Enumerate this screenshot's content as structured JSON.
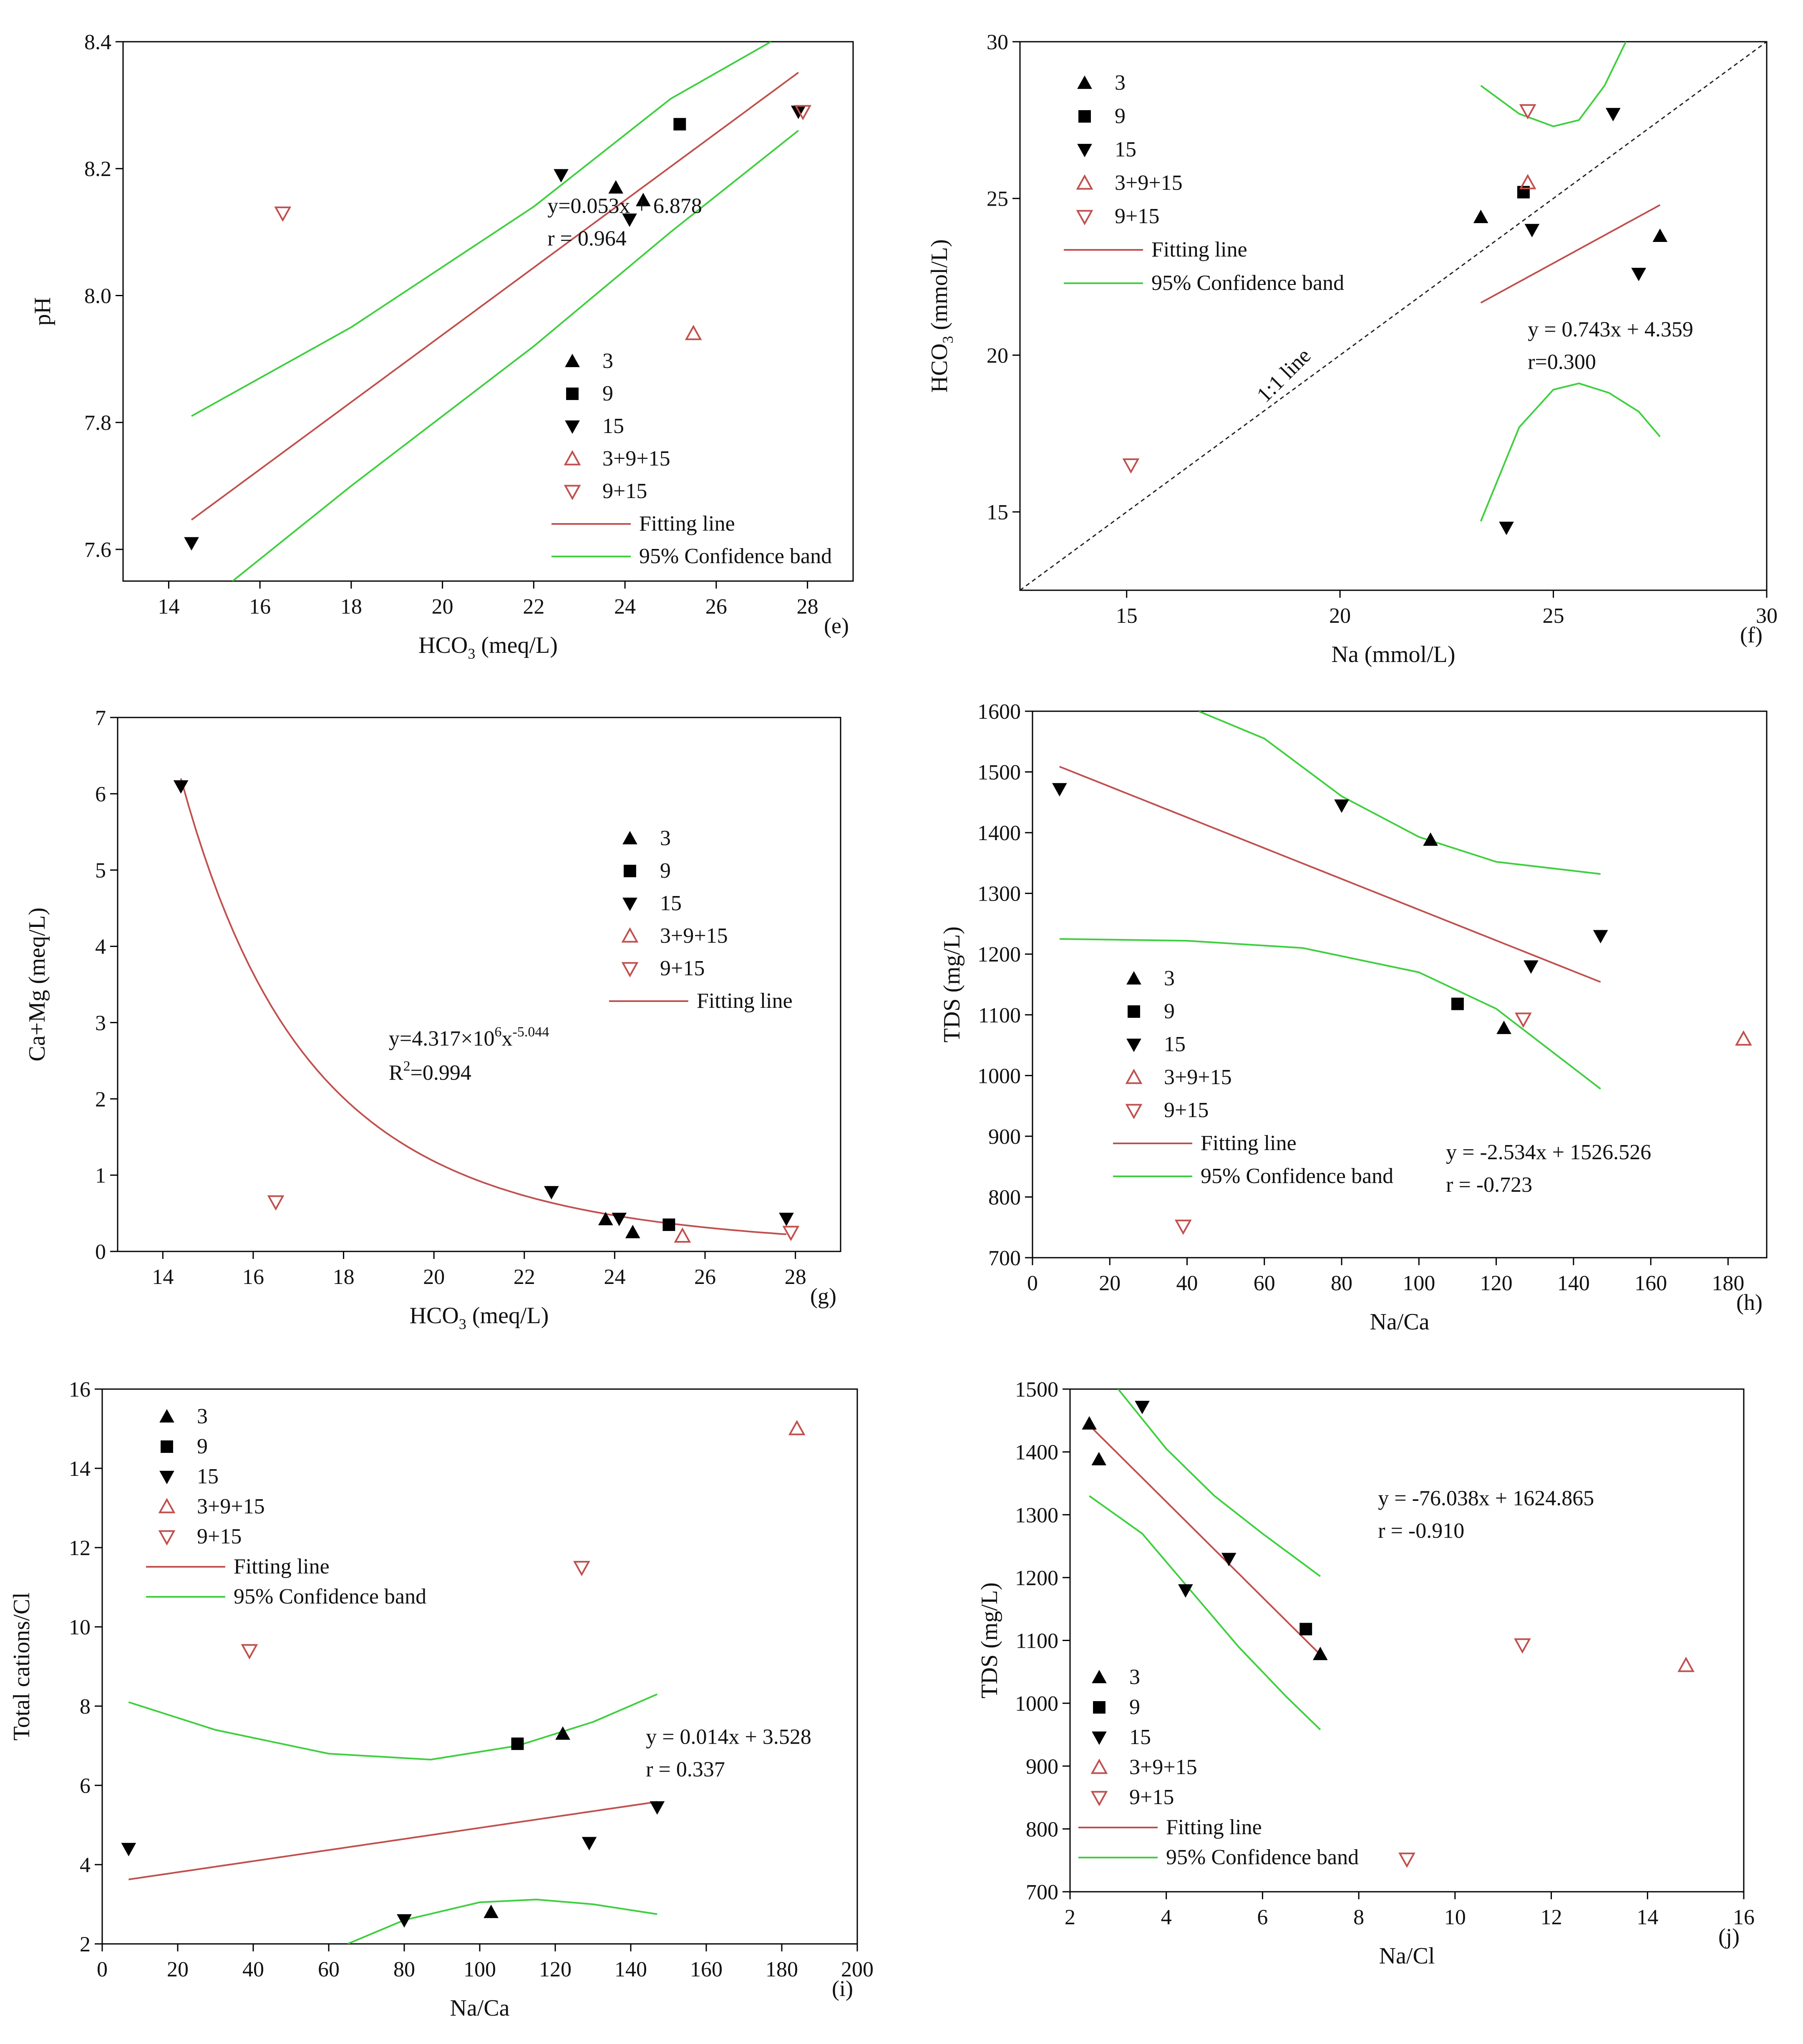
{
  "colors": {
    "axis": "#000000",
    "filled": "#000000",
    "open": "#c0504d",
    "fit": "#c0504d",
    "band": "#3ecf3e",
    "ref": "#222222"
  },
  "chart_data": [
    {
      "id": "e",
      "type": "scatter",
      "panel_label": "(e)",
      "xlabel": "HCO",
      "xlabel_sub": "3",
      "xlabel_tail": " (meq/L)",
      "ylabel": "pH",
      "xlim": [
        13,
        29
      ],
      "ylim": [
        7.55,
        8.4
      ],
      "xticks": [
        14,
        16,
        18,
        20,
        22,
        24,
        26,
        28
      ],
      "yticks": [
        7.6,
        7.8,
        8.0,
        8.2,
        8.4
      ],
      "ytick_labels": [
        "7.6",
        "7.8",
        "8.0",
        "8.2",
        "8.4"
      ],
      "series": [
        {
          "name": "3",
          "marker": "tri-up-filled",
          "points": [
            [
              23.8,
              8.17
            ],
            [
              24.4,
              8.15
            ]
          ]
        },
        {
          "name": "9",
          "marker": "square-filled",
          "points": [
            [
              25.2,
              8.27
            ]
          ]
        },
        {
          "name": "15",
          "marker": "tri-down-filled",
          "points": [
            [
              14.5,
              7.61
            ],
            [
              22.6,
              8.19
            ],
            [
              24.1,
              8.12
            ],
            [
              27.8,
              8.29
            ]
          ]
        },
        {
          "name": "3+9+15",
          "marker": "tri-up-open",
          "points": [
            [
              25.5,
              7.94
            ]
          ]
        },
        {
          "name": "9+15",
          "marker": "tri-down-open",
          "points": [
            [
              16.5,
              8.13
            ],
            [
              27.9,
              8.29
            ]
          ]
        }
      ],
      "fit": {
        "name": "Fitting line",
        "kind": "linear",
        "a": 0.053,
        "b": 6.878,
        "x_range": [
          14.5,
          27.8
        ]
      },
      "band": {
        "name": "95% Confidence band",
        "upper": [
          [
            14.5,
            7.81
          ],
          [
            18,
            7.95
          ],
          [
            22,
            8.14
          ],
          [
            25,
            8.31
          ],
          [
            27.2,
            8.4
          ]
        ],
        "lower": [
          [
            15.4,
            7.55
          ],
          [
            18,
            7.7
          ],
          [
            22,
            7.92
          ],
          [
            25,
            8.1
          ],
          [
            27.8,
            8.26
          ]
        ]
      },
      "equation": [
        "y=0.053x + 6.878",
        "r = 0.964"
      ],
      "equation_pos": [
        22.3,
        8.13
      ]
    },
    {
      "id": "f",
      "type": "scatter",
      "panel_label": "(f)",
      "xlabel": "Na (mmol/L)",
      "ylabel": "HCO",
      "ylabel_sub": "3",
      "ylabel_tail": " (mmol/L)",
      "xlim": [
        12.5,
        30
      ],
      "ylim": [
        12.5,
        30
      ],
      "xticks": [
        15,
        20,
        25,
        30
      ],
      "yticks": [
        15,
        20,
        25,
        30
      ],
      "series": [
        {
          "name": "3",
          "marker": "tri-up-filled",
          "points": [
            [
              23.3,
              24.4
            ],
            [
              27.5,
              23.8
            ]
          ]
        },
        {
          "name": "9",
          "marker": "square-filled",
          "points": [
            [
              24.3,
              25.2
            ]
          ]
        },
        {
          "name": "15",
          "marker": "tri-down-filled",
          "points": [
            [
              23.9,
              14.5
            ],
            [
              24.5,
              24.0
            ],
            [
              26.4,
              27.7
            ],
            [
              27.0,
              22.6
            ]
          ]
        },
        {
          "name": "3+9+15",
          "marker": "tri-up-open",
          "points": [
            [
              24.4,
              25.5
            ]
          ]
        },
        {
          "name": "9+15",
          "marker": "tri-down-open",
          "points": [
            [
              15.1,
              16.5
            ],
            [
              24.4,
              27.8
            ]
          ]
        }
      ],
      "fit": {
        "name": "Fitting line",
        "kind": "linear",
        "a": 0.743,
        "b": 4.359,
        "x_range": [
          23.3,
          27.5
        ]
      },
      "band": {
        "name": "95% Confidence band",
        "upper": [
          [
            23.3,
            28.6
          ],
          [
            24.2,
            27.7
          ],
          [
            25.0,
            27.3
          ],
          [
            25.6,
            27.5
          ],
          [
            26.2,
            28.6
          ],
          [
            26.7,
            30.0
          ]
        ],
        "lower": [
          [
            23.3,
            14.7
          ],
          [
            24.2,
            17.7
          ],
          [
            25.0,
            18.9
          ],
          [
            25.6,
            19.1
          ],
          [
            26.3,
            18.8
          ],
          [
            27.0,
            18.2
          ],
          [
            27.5,
            17.4
          ]
        ]
      },
      "equation": [
        "y = 0.743x + 4.359",
        "r=0.300"
      ],
      "equation_pos": [
        24.4,
        20.6
      ],
      "ref_line": {
        "label": "1:1 line",
        "label_pos": [
          18.8,
          19.2
        ],
        "label_angle": -45
      }
    },
    {
      "id": "g",
      "type": "scatter",
      "panel_label": "(g)",
      "xlabel": "HCO",
      "xlabel_sub": "3",
      "xlabel_tail": " (meq/L)",
      "ylabel": "Ca+Mg (meq/L)",
      "xlim": [
        13,
        29
      ],
      "ylim": [
        0,
        7
      ],
      "xticks": [
        14,
        16,
        18,
        20,
        22,
        24,
        26,
        28
      ],
      "yticks": [
        0,
        1,
        2,
        3,
        4,
        5,
        6,
        7
      ],
      "series": [
        {
          "name": "3",
          "marker": "tri-up-filled",
          "points": [
            [
              23.8,
              0.42
            ],
            [
              24.4,
              0.25
            ]
          ]
        },
        {
          "name": "9",
          "marker": "square-filled",
          "points": [
            [
              25.2,
              0.35
            ]
          ]
        },
        {
          "name": "15",
          "marker": "tri-down-filled",
          "points": [
            [
              14.4,
              6.1
            ],
            [
              22.6,
              0.78
            ],
            [
              24.1,
              0.43
            ],
            [
              27.8,
              0.43
            ]
          ]
        },
        {
          "name": "3+9+15",
          "marker": "tri-up-open",
          "points": [
            [
              25.5,
              0.2
            ]
          ]
        },
        {
          "name": "9+15",
          "marker": "tri-down-open",
          "points": [
            [
              16.5,
              0.65
            ],
            [
              27.9,
              0.25
            ]
          ]
        }
      ],
      "fit": {
        "name": "Fitting line",
        "kind": "power",
        "a": 4317000,
        "b": -5.044,
        "x_range": [
          14.4,
          27.8
        ]
      },
      "equation": [
        "y=4.317×10",
        "R",
        "=0.994"
      ],
      "equation_sup": [
        "6",
        "x",
        "-5.044",
        "2"
      ],
      "equation_pos": [
        19.0,
        2.7
      ]
    },
    {
      "id": "h",
      "type": "scatter",
      "panel_label": "(h)",
      "xlabel": "Na/Ca",
      "ylabel": "TDS (mg/L)",
      "xlim": [
        0,
        190
      ],
      "ylim": [
        700,
        1600
      ],
      "xticks": [
        0,
        20,
        40,
        60,
        80,
        100,
        120,
        140,
        160,
        180
      ],
      "yticks": [
        700,
        800,
        900,
        1000,
        1100,
        1200,
        1300,
        1400,
        1500,
        1600
      ],
      "series": [
        {
          "name": "3",
          "marker": "tri-up-filled",
          "points": [
            [
              103,
              1388
            ],
            [
              122,
              1078
            ]
          ]
        },
        {
          "name": "9",
          "marker": "square-filled",
          "points": [
            [
              110,
              1118
            ]
          ]
        },
        {
          "name": "15",
          "marker": "tri-down-filled",
          "points": [
            [
              7,
              1472
            ],
            [
              80,
              1445
            ],
            [
              129,
              1180
            ],
            [
              147,
              1230
            ]
          ]
        },
        {
          "name": "3+9+15",
          "marker": "tri-up-open",
          "points": [
            [
              184,
              1060
            ]
          ]
        },
        {
          "name": "9+15",
          "marker": "tri-down-open",
          "points": [
            [
              39,
              752
            ],
            [
              127,
              1093
            ]
          ]
        }
      ],
      "fit": {
        "name": "Fitting line",
        "kind": "linear",
        "a": -2.534,
        "b": 1526.526,
        "x_range": [
          7,
          147
        ]
      },
      "band": {
        "name": "95% Confidence band",
        "upper": [
          [
            43,
            1600
          ],
          [
            60,
            1555
          ],
          [
            80,
            1460
          ],
          [
            100,
            1393
          ],
          [
            120,
            1352
          ],
          [
            147,
            1332
          ]
        ],
        "lower": [
          [
            7,
            1225
          ],
          [
            40,
            1222
          ],
          [
            70,
            1210
          ],
          [
            100,
            1170
          ],
          [
            120,
            1110
          ],
          [
            147,
            978
          ]
        ]
      },
      "equation": [
        "y = -2.534x + 1526.526",
        "r = -0.723"
      ],
      "equation_pos": [
        107,
        862
      ]
    },
    {
      "id": "i",
      "type": "scatter",
      "panel_label": "(i)",
      "xlabel": "Na/Ca",
      "ylabel": "Total cations/Cl",
      "xlim": [
        0,
        200
      ],
      "ylim": [
        2,
        16
      ],
      "xticks": [
        0,
        20,
        40,
        60,
        80,
        100,
        120,
        140,
        160,
        180,
        200
      ],
      "yticks": [
        2,
        4,
        6,
        8,
        10,
        12,
        14,
        16
      ],
      "series": [
        {
          "name": "3",
          "marker": "tri-up-filled",
          "points": [
            [
              103,
              2.8
            ],
            [
              122,
              7.3
            ]
          ]
        },
        {
          "name": "9",
          "marker": "square-filled",
          "points": [
            [
              110,
              7.05
            ]
          ]
        },
        {
          "name": "15",
          "marker": "tri-down-filled",
          "points": [
            [
              7,
              4.4
            ],
            [
              80,
              2.6
            ],
            [
              129,
              4.55
            ],
            [
              147,
              5.45
            ]
          ]
        },
        {
          "name": "3+9+15",
          "marker": "tri-up-open",
          "points": [
            [
              184,
              15.0
            ]
          ]
        },
        {
          "name": "9+15",
          "marker": "tri-down-open",
          "points": [
            [
              39,
              9.4
            ],
            [
              127,
              11.5
            ]
          ]
        }
      ],
      "fit": {
        "name": "Fitting line",
        "kind": "linear",
        "a": 0.014,
        "b": 3.528,
        "x_range": [
          7,
          147
        ]
      },
      "band": {
        "name": "95% Confidence band",
        "upper": [
          [
            7,
            8.1
          ],
          [
            30,
            7.4
          ],
          [
            60,
            6.8
          ],
          [
            87,
            6.65
          ],
          [
            110,
            7.0
          ],
          [
            130,
            7.6
          ],
          [
            147,
            8.3
          ]
        ],
        "lower": [
          [
            65,
            2.0
          ],
          [
            80,
            2.6
          ],
          [
            100,
            3.05
          ],
          [
            115,
            3.12
          ],
          [
            130,
            3.0
          ],
          [
            147,
            2.75
          ]
        ]
      },
      "equation": [
        "y = 0.014x + 3.528",
        "r = 0.337"
      ],
      "equation_pos": [
        144,
        7.05
      ]
    },
    {
      "id": "j",
      "type": "scatter",
      "panel_label": "(j)",
      "xlabel": "Na/Cl",
      "ylabel": "TDS (mg/L)",
      "xlim": [
        2,
        16
      ],
      "ylim": [
        700,
        1500
      ],
      "xticks": [
        2,
        4,
        6,
        8,
        10,
        12,
        14,
        16
      ],
      "yticks": [
        700,
        800,
        900,
        1000,
        1100,
        1200,
        1300,
        1400,
        1500
      ],
      "series": [
        {
          "name": "3",
          "marker": "tri-up-filled",
          "points": [
            [
              2.4,
              1445
            ],
            [
              2.6,
              1388
            ],
            [
              7.2,
              1078
            ]
          ]
        },
        {
          "name": "9",
          "marker": "square-filled",
          "points": [
            [
              6.9,
              1118
            ]
          ]
        },
        {
          "name": "15",
          "marker": "tri-down-filled",
          "points": [
            [
              3.5,
              1472
            ],
            [
              4.4,
              1180
            ],
            [
              5.3,
              1230
            ]
          ]
        },
        {
          "name": "3+9+15",
          "marker": "tri-up-open",
          "points": [
            [
              14.8,
              1060
            ]
          ]
        },
        {
          "name": "9+15",
          "marker": "tri-down-open",
          "points": [
            [
              9.0,
              752
            ],
            [
              11.4,
              1093
            ]
          ]
        }
      ],
      "fit": {
        "name": "Fitting line",
        "kind": "linear",
        "a": -76.038,
        "b": 1624.865,
        "x_range": [
          2.4,
          7.2
        ]
      },
      "band": {
        "name": "95% Confidence band",
        "upper": [
          [
            3.0,
            1500
          ],
          [
            4.0,
            1405
          ],
          [
            5.0,
            1330
          ],
          [
            6.0,
            1270
          ],
          [
            7.2,
            1202
          ]
        ],
        "lower": [
          [
            2.4,
            1330
          ],
          [
            3.5,
            1270
          ],
          [
            4.5,
            1180
          ],
          [
            5.5,
            1090
          ],
          [
            6.5,
            1010
          ],
          [
            7.2,
            958
          ]
        ]
      },
      "equation": [
        "y = -76.038x + 1624.865",
        "r = -0.910"
      ],
      "equation_pos": [
        8.4,
        1315
      ]
    }
  ]
}
